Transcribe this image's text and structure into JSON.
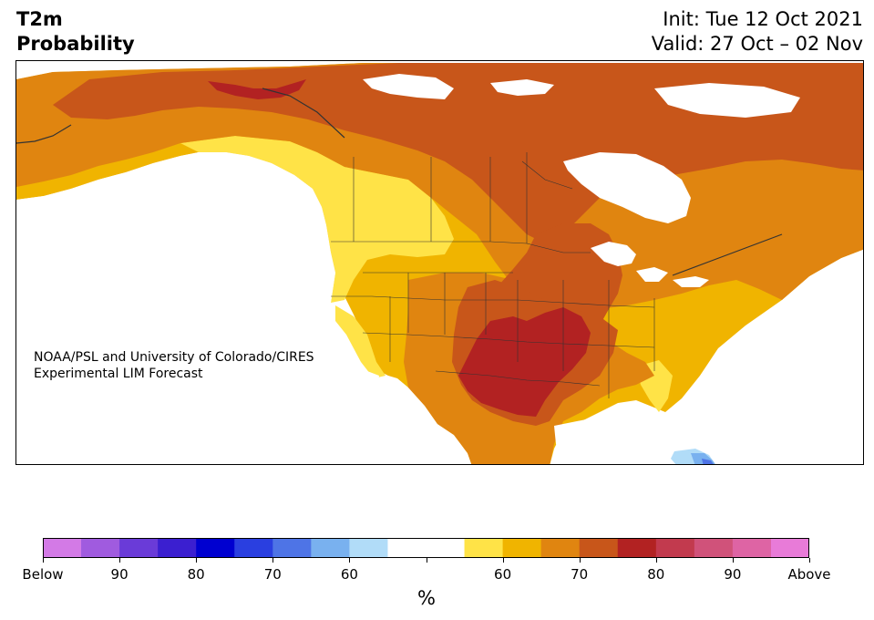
{
  "title": {
    "left_line1": "T2m",
    "left_line2": "Probability",
    "right_line1": "Init: Tue 12 Oct 2021",
    "right_line2": "Valid: 27 Oct – 02 Nov"
  },
  "credit": {
    "line1": "NOAA/PSL and University of Colorado/CIRES",
    "line2": "Experimental LIM Forecast"
  },
  "colorbar": {
    "unit": "%",
    "colors": [
      "#d37ae6",
      "#a05bdf",
      "#6a3bd8",
      "#3b1fd0",
      "#0000d0",
      "#2a3fe0",
      "#4e74e6",
      "#79b1ef",
      "#b1dcf8",
      "#ffffff",
      "#ffffff",
      "#ffe347",
      "#f0b400",
      "#e08510",
      "#c8561a",
      "#b22222",
      "#c23a4e",
      "#d0527a",
      "#de64a4",
      "#e87bd8"
    ],
    "tick_labels": [
      "Below",
      "90",
      "80",
      "70",
      "60",
      "",
      "60",
      "70",
      "80",
      "90",
      "Above"
    ]
  },
  "map": {
    "region": "North America",
    "category_colors": {
      "above_50_60": "#ffe347",
      "above_60_70": "#f0b400",
      "above_70_80": "#e08510",
      "above_80_90": "#c8561a",
      "above_90_100": "#b22222",
      "below_60": "#b1dcf8",
      "below_70": "#79b1ef",
      "below_80": "#4e74e6"
    }
  }
}
